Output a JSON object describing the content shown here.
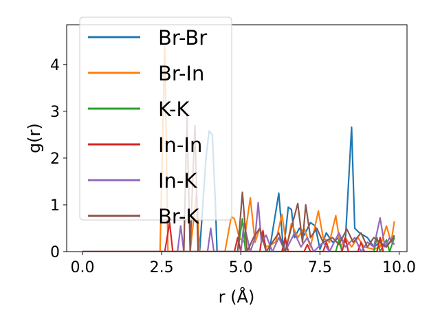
{
  "chart_data": {
    "type": "line",
    "xlabel": "r (Å)",
    "ylabel": "g(r)",
    "xlim": [
      -0.5,
      10.25
    ],
    "ylim": [
      0,
      4.85
    ],
    "xticks": [
      0.0,
      2.5,
      5.0,
      7.5,
      10.0
    ],
    "xtick_labels": [
      "0.0",
      "2.5",
      "5.0",
      "7.5",
      "10.0"
    ],
    "yticks": [
      0,
      1,
      2,
      3,
      4
    ],
    "ytick_labels": [
      "0",
      "1",
      "2",
      "3",
      "4"
    ],
    "grid": false,
    "legend_position": "top-left",
    "series": [
      {
        "name": "Br-Br",
        "color": "#1f77b4",
        "points": [
          [
            0,
            0
          ],
          [
            3.7,
            0
          ],
          [
            3.8,
            1.0
          ],
          [
            3.9,
            2.0
          ],
          [
            4.0,
            2.58
          ],
          [
            4.1,
            2.5
          ],
          [
            4.2,
            1.0
          ],
          [
            4.25,
            0
          ],
          [
            5.9,
            0
          ],
          [
            6.2,
            1.25
          ],
          [
            6.35,
            0
          ],
          [
            6.5,
            0.95
          ],
          [
            6.6,
            0.9
          ],
          [
            6.7,
            0.3
          ],
          [
            6.85,
            0.5
          ],
          [
            7.0,
            0.35
          ],
          [
            7.2,
            0.62
          ],
          [
            7.35,
            0.55
          ],
          [
            7.5,
            0.05
          ],
          [
            7.7,
            0.4
          ],
          [
            7.9,
            0.2
          ],
          [
            8.1,
            0.3
          ],
          [
            8.3,
            0.2
          ],
          [
            8.5,
            2.66
          ],
          [
            8.6,
            0.5
          ],
          [
            8.75,
            0.4
          ],
          [
            9.0,
            0.3
          ],
          [
            9.2,
            0.1
          ],
          [
            9.4,
            0.2
          ],
          [
            9.6,
            0.1
          ],
          [
            9.85,
            0.35
          ]
        ]
      },
      {
        "name": "Br-In",
        "color": "#ff7f0e",
        "points": [
          [
            0,
            0
          ],
          [
            2.45,
            0
          ],
          [
            2.6,
            4.4
          ],
          [
            2.7,
            0
          ],
          [
            3.4,
            0
          ],
          [
            3.6,
            1.25
          ],
          [
            3.7,
            0
          ],
          [
            4.5,
            0
          ],
          [
            4.7,
            0.75
          ],
          [
            4.8,
            0.7
          ],
          [
            4.95,
            0.3
          ],
          [
            5.1,
            0.2
          ],
          [
            5.3,
            1.15
          ],
          [
            5.45,
            0.2
          ],
          [
            5.6,
            0.5
          ],
          [
            5.8,
            0.1
          ],
          [
            6.1,
            0.2
          ],
          [
            6.3,
            0.8
          ],
          [
            6.45,
            0.1
          ],
          [
            6.6,
            0.6
          ],
          [
            6.8,
            0.3
          ],
          [
            7.0,
            0.5
          ],
          [
            7.2,
            0.1
          ],
          [
            7.45,
            0.87
          ],
          [
            7.6,
            0.3
          ],
          [
            7.8,
            0.2
          ],
          [
            8.0,
            0.77
          ],
          [
            8.15,
            0.1
          ],
          [
            8.3,
            0.3
          ],
          [
            8.5,
            0.1
          ],
          [
            8.7,
            0.3
          ],
          [
            8.9,
            0.1
          ],
          [
            9.2,
            0.05
          ],
          [
            9.4,
            0.1
          ],
          [
            9.6,
            0.55
          ],
          [
            9.75,
            0.2
          ],
          [
            9.85,
            0.65
          ]
        ]
      },
      {
        "name": "K-K",
        "color": "#2ca02c",
        "points": [
          [
            0,
            0
          ],
          [
            4.9,
            0
          ],
          [
            5.05,
            0.7
          ],
          [
            5.15,
            0
          ],
          [
            8.0,
            0
          ],
          [
            8.1,
            0.25
          ],
          [
            8.2,
            0
          ],
          [
            9.2,
            0
          ],
          [
            9.3,
            0.3
          ],
          [
            9.4,
            0
          ],
          [
            9.6,
            0.25
          ],
          [
            9.7,
            0
          ],
          [
            9.85,
            0.3
          ]
        ]
      },
      {
        "name": "In-In",
        "color": "#d62728",
        "points": [
          [
            0,
            0
          ],
          [
            2.6,
            0
          ],
          [
            2.75,
            0.62
          ],
          [
            2.85,
            0
          ],
          [
            4.8,
            0
          ],
          [
            4.9,
            0.3
          ],
          [
            5.0,
            0
          ],
          [
            5.6,
            0
          ],
          [
            5.7,
            0.45
          ],
          [
            5.8,
            0
          ],
          [
            6.3,
            0
          ],
          [
            6.4,
            0.3
          ],
          [
            6.5,
            0
          ],
          [
            7.0,
            0
          ],
          [
            7.1,
            0.15
          ],
          [
            7.2,
            0
          ],
          [
            7.6,
            0
          ],
          [
            7.7,
            0.2
          ],
          [
            7.8,
            0
          ],
          [
            8.2,
            0
          ],
          [
            8.3,
            0.3
          ],
          [
            8.4,
            0
          ],
          [
            8.7,
            0
          ],
          [
            8.8,
            0.2
          ],
          [
            8.9,
            0
          ],
          [
            9.3,
            0
          ],
          [
            9.4,
            0.3
          ],
          [
            9.5,
            0
          ]
        ]
      },
      {
        "name": "In-K",
        "color": "#9467bd",
        "points": [
          [
            0,
            0
          ],
          [
            3.0,
            0
          ],
          [
            3.1,
            0.55
          ],
          [
            3.2,
            0
          ],
          [
            3.95,
            0
          ],
          [
            4.05,
            0.5
          ],
          [
            4.15,
            0
          ],
          [
            5.0,
            0
          ],
          [
            5.1,
            0.6
          ],
          [
            5.3,
            0
          ],
          [
            5.45,
            0.3
          ],
          [
            5.55,
            1.05
          ],
          [
            5.65,
            0.2
          ],
          [
            5.8,
            0.35
          ],
          [
            6.0,
            0
          ],
          [
            6.2,
            0.3
          ],
          [
            6.4,
            0
          ],
          [
            6.7,
            0.4
          ],
          [
            6.9,
            0.1
          ],
          [
            7.1,
            0.3
          ],
          [
            7.3,
            0
          ],
          [
            7.6,
            0.2
          ],
          [
            7.8,
            0
          ],
          [
            8.1,
            0.4
          ],
          [
            8.3,
            0.1
          ],
          [
            8.6,
            0.3
          ],
          [
            8.8,
            0
          ],
          [
            9.0,
            0.2
          ],
          [
            9.2,
            0.1
          ],
          [
            9.4,
            0.72
          ],
          [
            9.55,
            0.1
          ],
          [
            9.7,
            0.3
          ],
          [
            9.85,
            0.15
          ]
        ]
      },
      {
        "name": "Br-K",
        "color": "#8c564b",
        "points": [
          [
            0,
            0
          ],
          [
            3.2,
            0
          ],
          [
            3.3,
            2.9
          ],
          [
            3.4,
            0
          ],
          [
            3.45,
            1.0
          ],
          [
            3.55,
            2.7
          ],
          [
            3.65,
            0
          ],
          [
            4.9,
            0
          ],
          [
            5.05,
            1.27
          ],
          [
            5.2,
            0
          ],
          [
            5.4,
            0.3
          ],
          [
            5.6,
            0.5
          ],
          [
            5.8,
            0
          ],
          [
            6.0,
            0.2
          ],
          [
            6.2,
            0.4
          ],
          [
            6.4,
            0
          ],
          [
            6.8,
            1.03
          ],
          [
            6.95,
            0.2
          ],
          [
            7.05,
            1.0
          ],
          [
            7.2,
            0.3
          ],
          [
            7.4,
            0.5
          ],
          [
            7.6,
            0.2
          ],
          [
            7.9,
            0.3
          ],
          [
            8.1,
            0.15
          ],
          [
            8.35,
            0.48
          ],
          [
            8.55,
            0.2
          ],
          [
            8.8,
            0.4
          ],
          [
            9.0,
            0.1
          ],
          [
            9.2,
            0.3
          ],
          [
            9.4,
            0.2
          ],
          [
            9.6,
            0.1
          ],
          [
            9.85,
            0.32
          ]
        ]
      }
    ]
  }
}
